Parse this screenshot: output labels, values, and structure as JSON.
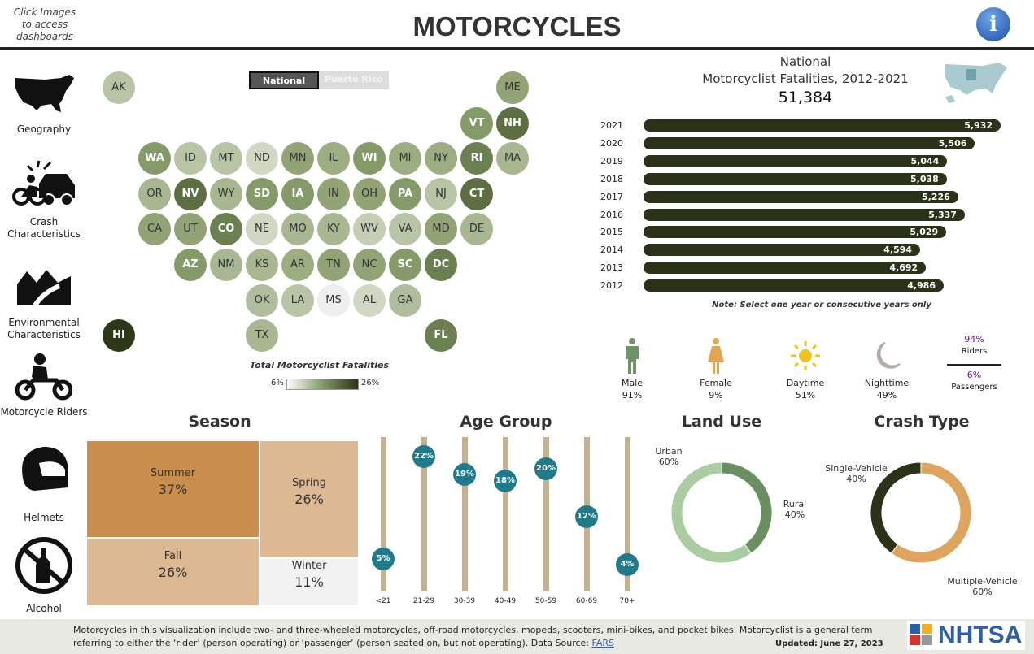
{
  "header": {
    "hint": "Click Images to access dashboards",
    "title": "MOTORCYCLES",
    "info_icon": "info-icon"
  },
  "sidebar": [
    {
      "label": "Geography",
      "icon": "us-map-icon"
    },
    {
      "label": "Crash Characteristics",
      "icon": "crash-icon"
    },
    {
      "label": "Environmental Characteristics",
      "icon": "road-icon"
    },
    {
      "label": "Motorcycle Riders",
      "icon": "rider-icon"
    },
    {
      "label": "Helmets",
      "icon": "helmet-icon"
    },
    {
      "label": "Alcohol",
      "icon": "no-alcohol-icon"
    }
  ],
  "toggle": {
    "national": "National",
    "puerto_rico": "Puerto Rico"
  },
  "map": {
    "legend_title": "Total Motorcyclist Fatalities",
    "legend_min": "6%",
    "legend_max": "26%",
    "states": [
      {
        "abbr": "AK",
        "col": 0,
        "row": 0,
        "color": "#b8c4a6"
      },
      {
        "abbr": "ME",
        "col": 11,
        "row": 0,
        "color": "#92a476"
      },
      {
        "abbr": "VT",
        "col": 10,
        "row": 1,
        "color": "#849a68"
      },
      {
        "abbr": "NH",
        "col": 11,
        "row": 1,
        "color": "#5c6e42"
      },
      {
        "abbr": "WA",
        "col": 1,
        "row": 2,
        "color": "#849a68"
      },
      {
        "abbr": "ID",
        "col": 2,
        "row": 2,
        "color": "#b8c4a6"
      },
      {
        "abbr": "MT",
        "col": 3,
        "row": 2,
        "color": "#b8c4a6"
      },
      {
        "abbr": "ND",
        "col": 4,
        "row": 2,
        "color": "#d0d8c4"
      },
      {
        "abbr": "MN",
        "col": 5,
        "row": 2,
        "color": "#92a476"
      },
      {
        "abbr": "IL",
        "col": 6,
        "row": 2,
        "color": "#9cad82"
      },
      {
        "abbr": "WI",
        "col": 7,
        "row": 2,
        "color": "#849a68"
      },
      {
        "abbr": "MI",
        "col": 8,
        "row": 2,
        "color": "#9cad82"
      },
      {
        "abbr": "NY",
        "col": 9,
        "row": 2,
        "color": "#9cad82"
      },
      {
        "abbr": "RI",
        "col": 10,
        "row": 2,
        "color": "#6b8050"
      },
      {
        "abbr": "MA",
        "col": 11,
        "row": 2,
        "color": "#a8b792"
      },
      {
        "abbr": "OR",
        "col": 1,
        "row": 3,
        "color": "#a8b792"
      },
      {
        "abbr": "NV",
        "col": 2,
        "row": 3,
        "color": "#5c6e42"
      },
      {
        "abbr": "WY",
        "col": 3,
        "row": 3,
        "color": "#a8b792"
      },
      {
        "abbr": "SD",
        "col": 4,
        "row": 3,
        "color": "#849a68"
      },
      {
        "abbr": "IA",
        "col": 5,
        "row": 3,
        "color": "#849a68"
      },
      {
        "abbr": "IN",
        "col": 6,
        "row": 3,
        "color": "#92a476"
      },
      {
        "abbr": "OH",
        "col": 7,
        "row": 3,
        "color": "#92a476"
      },
      {
        "abbr": "PA",
        "col": 8,
        "row": 3,
        "color": "#849a68"
      },
      {
        "abbr": "NJ",
        "col": 9,
        "row": 3,
        "color": "#b8c4a6"
      },
      {
        "abbr": "CT",
        "col": 10,
        "row": 3,
        "color": "#5c6e42"
      },
      {
        "abbr": "CA",
        "col": 1,
        "row": 4,
        "color": "#92a476"
      },
      {
        "abbr": "UT",
        "col": 2,
        "row": 4,
        "color": "#92a476"
      },
      {
        "abbr": "CO",
        "col": 3,
        "row": 4,
        "color": "#6b8050"
      },
      {
        "abbr": "NE",
        "col": 4,
        "row": 4,
        "color": "#d0d8c4"
      },
      {
        "abbr": "MO",
        "col": 5,
        "row": 4,
        "color": "#a8b792"
      },
      {
        "abbr": "KY",
        "col": 6,
        "row": 4,
        "color": "#a8b792"
      },
      {
        "abbr": "WV",
        "col": 7,
        "row": 4,
        "color": "#c4ceb4"
      },
      {
        "abbr": "VA",
        "col": 8,
        "row": 4,
        "color": "#b8c4a6"
      },
      {
        "abbr": "MD",
        "col": 9,
        "row": 4,
        "color": "#92a476"
      },
      {
        "abbr": "DE",
        "col": 10,
        "row": 4,
        "color": "#a8b792"
      },
      {
        "abbr": "AZ",
        "col": 2,
        "row": 5,
        "color": "#849a68"
      },
      {
        "abbr": "NM",
        "col": 3,
        "row": 5,
        "color": "#a8b792"
      },
      {
        "abbr": "KS",
        "col": 4,
        "row": 5,
        "color": "#a8b792"
      },
      {
        "abbr": "AR",
        "col": 5,
        "row": 5,
        "color": "#9cad82"
      },
      {
        "abbr": "TN",
        "col": 6,
        "row": 5,
        "color": "#92a476"
      },
      {
        "abbr": "NC",
        "col": 7,
        "row": 5,
        "color": "#92a476"
      },
      {
        "abbr": "SC",
        "col": 8,
        "row": 5,
        "color": "#849a68"
      },
      {
        "abbr": "DC",
        "col": 9,
        "row": 5,
        "color": "#6b8050"
      },
      {
        "abbr": "OK",
        "col": 4,
        "row": 6,
        "color": "#b0bd9c"
      },
      {
        "abbr": "LA",
        "col": 5,
        "row": 6,
        "color": "#b8c4a6"
      },
      {
        "abbr": "MS",
        "col": 6,
        "row": 6,
        "color": "#eeeeee"
      },
      {
        "abbr": "AL",
        "col": 7,
        "row": 6,
        "color": "#d0d8c4"
      },
      {
        "abbr": "GA",
        "col": 8,
        "row": 6,
        "color": "#b0bd9c"
      },
      {
        "abbr": "HI",
        "col": 0,
        "row": 7,
        "color": "#2c3818"
      },
      {
        "abbr": "TX",
        "col": 4,
        "row": 7,
        "color": "#a8b792"
      },
      {
        "abbr": "FL",
        "col": 9,
        "row": 7,
        "color": "#6b8050"
      }
    ]
  },
  "summary": {
    "line1": "National",
    "line2": "Motorcyclist Fatalities, 2012-2021",
    "total": "51,384",
    "note": "Note: Select one year or consecutive years only"
  },
  "chart_data": {
    "type": "bar",
    "orientation": "horizontal",
    "categories": [
      "2021",
      "2020",
      "2019",
      "2018",
      "2017",
      "2016",
      "2015",
      "2014",
      "2013",
      "2012"
    ],
    "values": [
      5932,
      5506,
      5044,
      5038,
      5226,
      5337,
      5029,
      4594,
      4692,
      4986
    ],
    "labels": [
      "5,932",
      "5,506",
      "5,044",
      "5,038",
      "5,226",
      "5,337",
      "5,029",
      "4,594",
      "4,692",
      "4,986"
    ],
    "xlim": [
      0,
      5932
    ],
    "color": "#2a3318"
  },
  "demographics": [
    {
      "label": "Male",
      "value": "91%",
      "icon": "male-icon",
      "color": "#6f9466"
    },
    {
      "label": "Female",
      "value": "9%",
      "icon": "female-icon",
      "color": "#e3a552"
    },
    {
      "label": "Daytime",
      "value": "51%",
      "icon": "sun-icon",
      "color": "#f2c21c"
    },
    {
      "label": "Nighttime",
      "value": "49%",
      "icon": "moon-icon",
      "color": "#b4aaa6"
    }
  ],
  "riders": {
    "riders_value": "94%",
    "riders_label": "Riders",
    "passengers_value": "6%",
    "passengers_label": "Passengers",
    "value_color": "#6a1b9a"
  },
  "season": {
    "title": "Season",
    "items": [
      {
        "label": "Summer",
        "value": "37%",
        "color": "#c98d4e"
      },
      {
        "label": "Spring",
        "value": "26%",
        "color": "#dcb893"
      },
      {
        "label": "Fall",
        "value": "26%",
        "color": "#dcb893"
      },
      {
        "label": "Winter",
        "value": "11%",
        "color": "#f2f2f2"
      }
    ]
  },
  "age": {
    "title": "Age Group",
    "groups": [
      {
        "label": "<21",
        "value": 5
      },
      {
        "label": "21-29",
        "value": 22
      },
      {
        "label": "30-39",
        "value": 19
      },
      {
        "label": "40-49",
        "value": 18
      },
      {
        "label": "50-59",
        "value": 20
      },
      {
        "label": "60-69",
        "value": 12
      },
      {
        "label": "70+",
        "value": 4
      }
    ]
  },
  "land_use": {
    "title": "Land Use",
    "slices": [
      {
        "label": "Rural",
        "value": 40,
        "text": "40%",
        "color": "#6a8f60"
      },
      {
        "label": "Urban",
        "value": 60,
        "text": "60%",
        "color": "#a9cda0"
      }
    ]
  },
  "crash_type": {
    "title": "Crash Type",
    "slices": [
      {
        "label": "Multiple-Vehicle",
        "value": 60,
        "text": "60%",
        "color": "#dea35e"
      },
      {
        "label": "Single-Vehicle",
        "value": 40,
        "text": "40%",
        "color": "#2a3318"
      }
    ]
  },
  "footer": {
    "text": "Motorcycles in this visualization include two- and three-wheeled motorcycles, off-road motorcycles, mopeds, scooters, mini-bikes, and pocket bikes. Motorcyclist is a general term referring to either the ‘rider’ (person operating) or ‘passenger’ (person seated on, but not operating). Data Source: ",
    "link": "FARS",
    "updated": "Updated: June 27, 2023",
    "logo": "NHTSA"
  }
}
